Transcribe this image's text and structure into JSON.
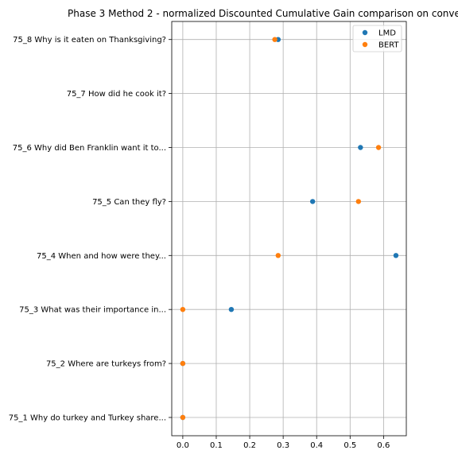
{
  "chart_data": {
    "type": "scatter",
    "title": "Phase 3 Method 2 - normalized Discounted Cumulative Gain comparison on conve",
    "xlabel": "",
    "ylabel": "",
    "xlim": [
      -0.033,
      0.668
    ],
    "xticks": [
      0.0,
      0.1,
      0.2,
      0.3,
      0.4,
      0.5,
      0.6
    ],
    "xtick_labels": [
      "0.0",
      "0.1",
      "0.2",
      "0.3",
      "0.4",
      "0.5",
      "0.6"
    ],
    "grid": true,
    "legend_position": "top-right",
    "categories": [
      "75_1 Why do turkey and Turkey share...",
      "75_2 Where are turkeys from?",
      "75_3 What was their importance in...",
      "75_4 When and how were they...",
      "75_5 Can they fly?",
      "75_6 Why did Ben Franklin want it to...",
      "75_7 How did he cook it?",
      "75_8 Why is it eaten on Thanksgiving?"
    ],
    "series": [
      {
        "name": "LMD",
        "color": "#1f77b4",
        "values": [
          0.0,
          0.0,
          0.145,
          0.637,
          0.388,
          0.531,
          null,
          0.285
        ]
      },
      {
        "name": "BERT",
        "color": "#ff7f0e",
        "values": [
          0.0,
          0.0,
          0.0,
          0.285,
          0.525,
          0.585,
          null,
          0.275
        ]
      }
    ]
  }
}
